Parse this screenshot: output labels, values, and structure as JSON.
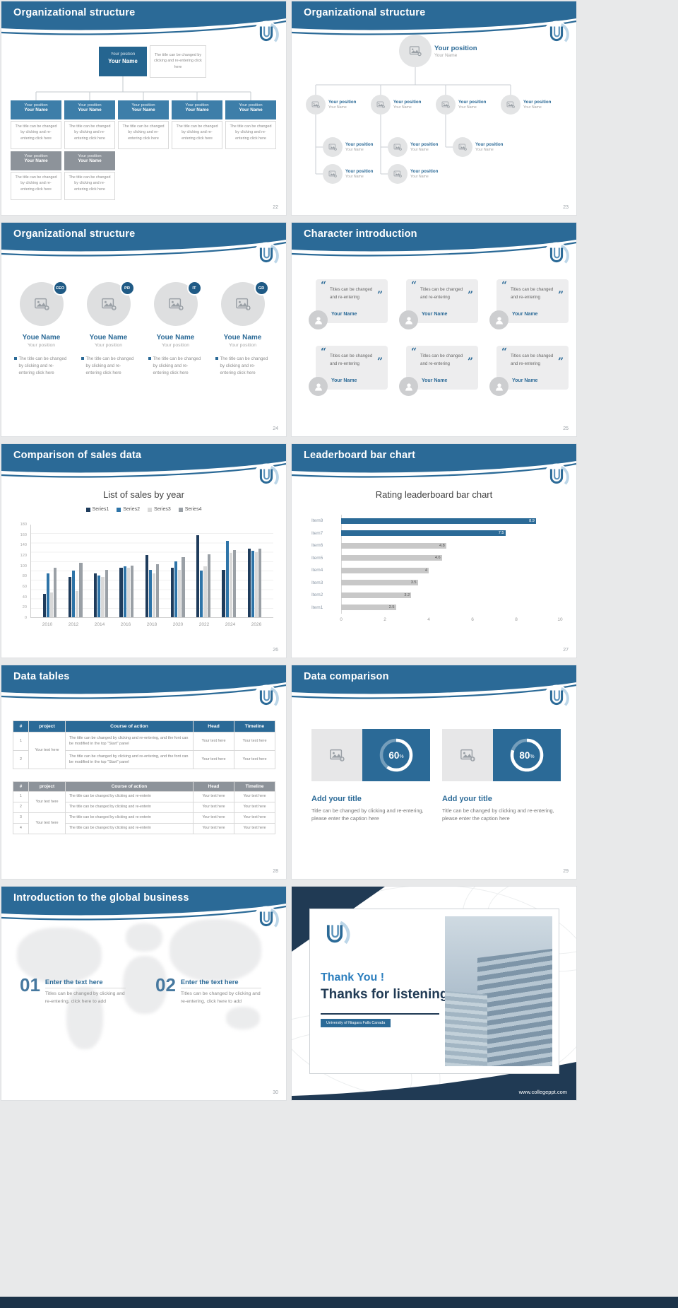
{
  "page": {
    "background": "#e8e9ea",
    "accent": "#2b6a97",
    "navy": "#203a54",
    "footer_color": "#1c3349"
  },
  "slides": {
    "org_boxes": {
      "title": "Organizational structure",
      "page": "22",
      "position": "Your position",
      "name": "Your Name",
      "root_note": "The title can be changed by clicking and re-entering click here",
      "note": "The title can be changed by clicking and re-entering click here"
    },
    "org_photos": {
      "title": "Organizational structure",
      "page": "23",
      "position": "Your position",
      "name": "Your Name"
    },
    "org_avatars": {
      "title": "Organizational structure",
      "page": "24",
      "badges": [
        "CEO",
        "PR",
        "IT",
        "GD"
      ],
      "name": "Youe Name",
      "position": "Your position",
      "desc": "The title can be changed by clicking and re-entering click here"
    },
    "characters": {
      "title": "Character introduction",
      "page": "25",
      "quote_open": "“",
      "quote_close": "”",
      "quote": "Titles can be changed and re-entering",
      "name": "Your Name"
    },
    "sales": {
      "title": "Comparison of sales data",
      "page": "26"
    },
    "leaderboard": {
      "title": "Leaderboard bar chart",
      "page": "27"
    },
    "tables": {
      "title": "Data tables",
      "page": "28",
      "headers": [
        "#",
        "project",
        "Course of action",
        "Head",
        "Timeline"
      ],
      "cell": "Your text here",
      "t1_course": "The title can be changed by clicking and re-entering, and the font can be modified in the top \"Start\" panel",
      "t2_course": "The title can be changed by clicking and re-enterin",
      "t1_nums": [
        "1",
        "2"
      ],
      "t2_nums": [
        "1",
        "2",
        "3",
        "4"
      ]
    },
    "comparison": {
      "title": "Data comparison",
      "page": "29",
      "heading": "Add your title",
      "caption": "Title can be changed by clicking and re-entering, please enter the caption here"
    },
    "global": {
      "title": "Introduction to the global business",
      "page": "30",
      "items": [
        {
          "num": "01",
          "heading": "Enter the text here",
          "text": "Titles can be changed by clicking and re-entering, click here to add"
        },
        {
          "num": "02",
          "heading": "Enter the text here",
          "text": "Titles can be changed by clicking and re-entering, click here to add"
        }
      ]
    },
    "thanks": {
      "line1": "Thank You !",
      "line2": "Thanks for listening!",
      "subtitle": "University of Niagara Falls Canada",
      "url": "www.collegeppt.com"
    }
  },
  "chart_data": [
    {
      "id": "sales",
      "type": "bar",
      "title": "List of sales by year",
      "categories": [
        "2010",
        "2012",
        "2014",
        "2016",
        "2018",
        "2020",
        "2022",
        "2024",
        "2026"
      ],
      "series": [
        {
          "name": "Series1",
          "color": "#1f3c5c",
          "values": [
            45,
            78,
            85,
            95,
            120,
            96,
            158,
            92,
            132
          ]
        },
        {
          "name": "Series2",
          "color": "#2e74a8",
          "values": [
            85,
            90,
            80,
            98,
            92,
            108,
            90,
            148,
            128
          ]
        },
        {
          "name": "Series3",
          "color": "#d9d9d9",
          "values": [
            48,
            50,
            78,
            95,
            85,
            92,
            98,
            124,
            126
          ]
        },
        {
          "name": "Series4",
          "color": "#9aa0a6",
          "values": [
            95,
            105,
            92,
            100,
            103,
            116,
            122,
            130,
            133
          ]
        }
      ],
      "ylim": [
        0,
        180
      ],
      "yticks": [
        0,
        20,
        40,
        60,
        80,
        100,
        120,
        140,
        160,
        180
      ],
      "legend_position": "top",
      "grid": true
    },
    {
      "id": "leaderboard",
      "type": "bar",
      "orientation": "horizontal",
      "title": "Rating leaderboard bar chart",
      "items": [
        {
          "label": "Item8",
          "value": 8.9,
          "highlight": true
        },
        {
          "label": "Item7",
          "value": 7.5,
          "highlight": true
        },
        {
          "label": "Item6",
          "value": 4.8,
          "highlight": false
        },
        {
          "label": "Item5",
          "value": 4.6,
          "highlight": false
        },
        {
          "label": "Item4",
          "value": 4,
          "highlight": false
        },
        {
          "label": "Item3",
          "value": 3.5,
          "highlight": false
        },
        {
          "label": "Item2",
          "value": 3.2,
          "highlight": false
        },
        {
          "label": "Item1",
          "value": 2.5,
          "highlight": false
        }
      ],
      "xlim": [
        0,
        10
      ],
      "xticks": [
        0,
        2,
        4,
        6,
        8,
        10
      ],
      "highlight_color": "#2b6a97",
      "bar_color": "#c8c8c8",
      "grid": false
    },
    {
      "id": "donuts",
      "type": "donut",
      "values": [
        {
          "percent": 60,
          "unit": "%"
        },
        {
          "percent": 80,
          "unit": "%"
        }
      ]
    }
  ]
}
